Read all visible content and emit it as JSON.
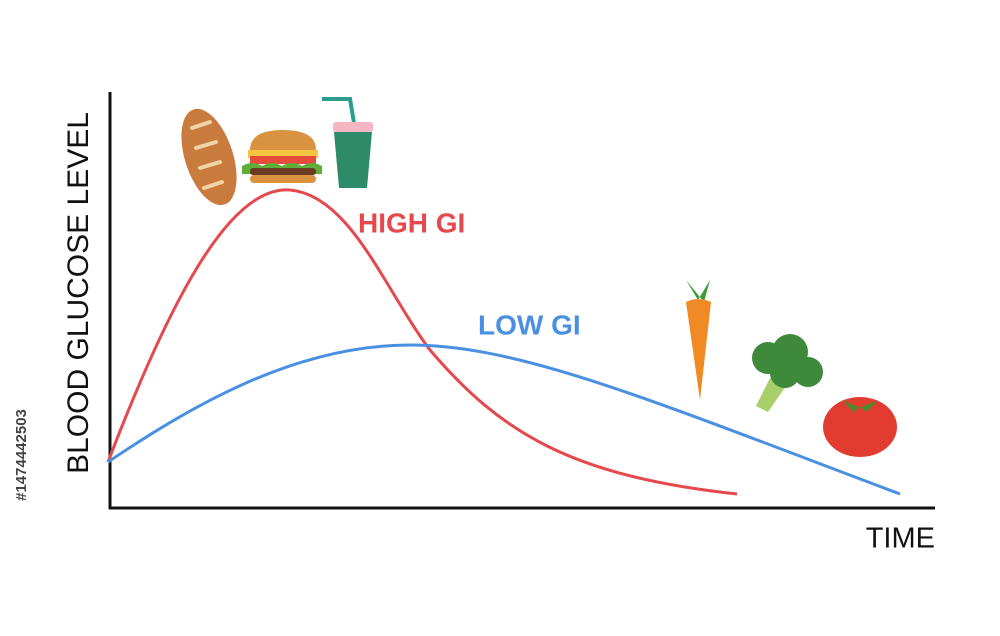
{
  "labels": {
    "y_axis": "BLOOD GLUCOSE LEVEL",
    "x_axis": "TIME",
    "high_gi": "HIGH GI",
    "low_gi": "LOW GI"
  },
  "stock_id": "#1474442503"
}
